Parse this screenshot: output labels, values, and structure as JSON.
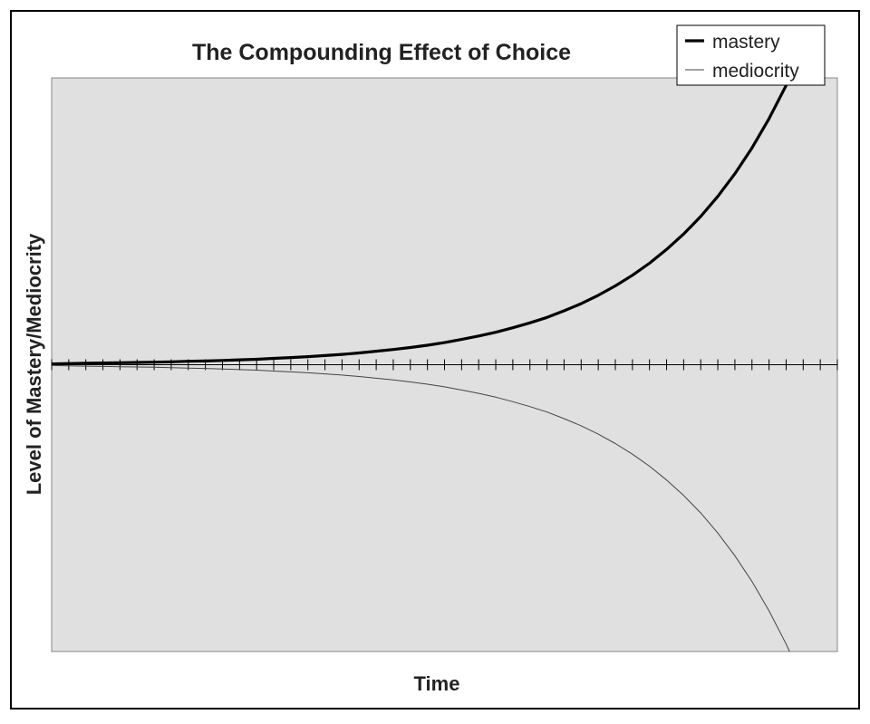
{
  "chart_data": {
    "type": "line",
    "title": "The Compounding Effect of Choice",
    "xlabel": "Time",
    "ylabel": "Level of Mastery/Mediocrity",
    "grid": false,
    "legend_placement": "top-right",
    "x": [
      0,
      1,
      2,
      3,
      4,
      5,
      6,
      7,
      8,
      9,
      10,
      11,
      12,
      13,
      14,
      15,
      16,
      17,
      18,
      19,
      20,
      21,
      22,
      23,
      24,
      25,
      26,
      27,
      28,
      29,
      30,
      31,
      32,
      33,
      34,
      35,
      36,
      37,
      38,
      39,
      40,
      41,
      42,
      43,
      44
    ],
    "xlim": [
      0,
      46
    ],
    "ylim": [
      -100,
      100
    ],
    "series": [
      {
        "name": "mastery",
        "color": "#000000",
        "values": [
          0.3,
          0.4,
          0.5,
          0.6,
          0.7,
          0.8,
          0.9,
          1.0,
          1.2,
          1.3,
          1.5,
          1.7,
          1.9,
          2.2,
          2.5,
          2.8,
          3.2,
          3.6,
          4.1,
          4.7,
          5.3,
          6.0,
          6.8,
          7.7,
          8.8,
          10.0,
          11.3,
          12.9,
          14.6,
          16.5,
          18.8,
          21.3,
          24.2,
          27.5,
          31.2,
          35.4,
          40.2,
          45.6,
          51.7,
          58.7,
          66.6,
          75.6,
          85.8,
          97.4,
          110.5
        ]
      },
      {
        "name": "mediocrity",
        "color": "#444444",
        "values": [
          -0.3,
          -0.4,
          -0.5,
          -0.6,
          -0.7,
          -0.8,
          -0.9,
          -1.0,
          -1.2,
          -1.3,
          -1.5,
          -1.7,
          -1.9,
          -2.2,
          -2.5,
          -2.8,
          -3.2,
          -3.6,
          -4.1,
          -4.7,
          -5.3,
          -6.0,
          -6.8,
          -7.7,
          -8.8,
          -10.0,
          -11.3,
          -12.9,
          -14.6,
          -16.5,
          -18.8,
          -21.3,
          -24.2,
          -27.5,
          -31.2,
          -35.4,
          -40.2,
          -45.6,
          -51.7,
          -58.7,
          -66.6,
          -75.6,
          -85.8,
          -97.4,
          -110.5
        ]
      }
    ],
    "colors": {
      "plot_background": "#e0e0e0",
      "frame": "#000000",
      "axis": "#000000"
    }
  }
}
